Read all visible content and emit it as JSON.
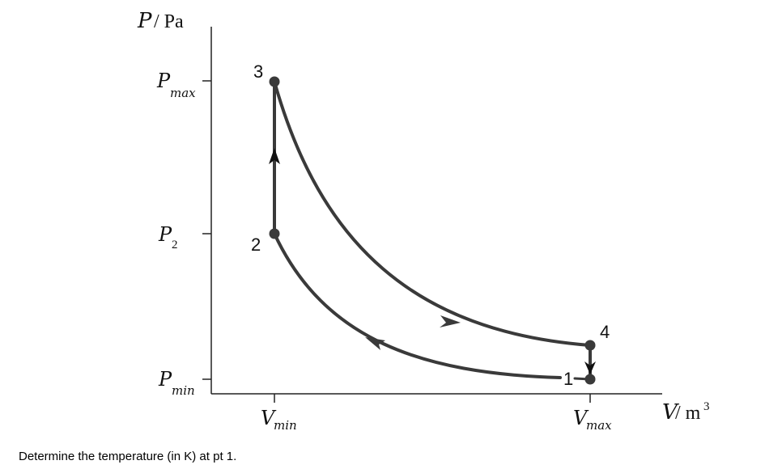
{
  "diagram": {
    "y_axis": {
      "label": "P",
      "unit": "/ Pa"
    },
    "x_axis": {
      "label": "V",
      "unit": "/ m",
      "unit_sup": "3"
    },
    "y_ticks": [
      {
        "main": "P",
        "sub": "max"
      },
      {
        "main": "P",
        "sub": "2"
      },
      {
        "main": "P",
        "sub": "min"
      }
    ],
    "x_ticks": [
      {
        "main": "V",
        "sub": "min"
      },
      {
        "main": "V",
        "sub": "max"
      }
    ],
    "points": [
      "1",
      "2",
      "3",
      "4"
    ],
    "line_color": "#3a3a3a"
  },
  "question": "Determine the temperature (in K) at pt 1."
}
